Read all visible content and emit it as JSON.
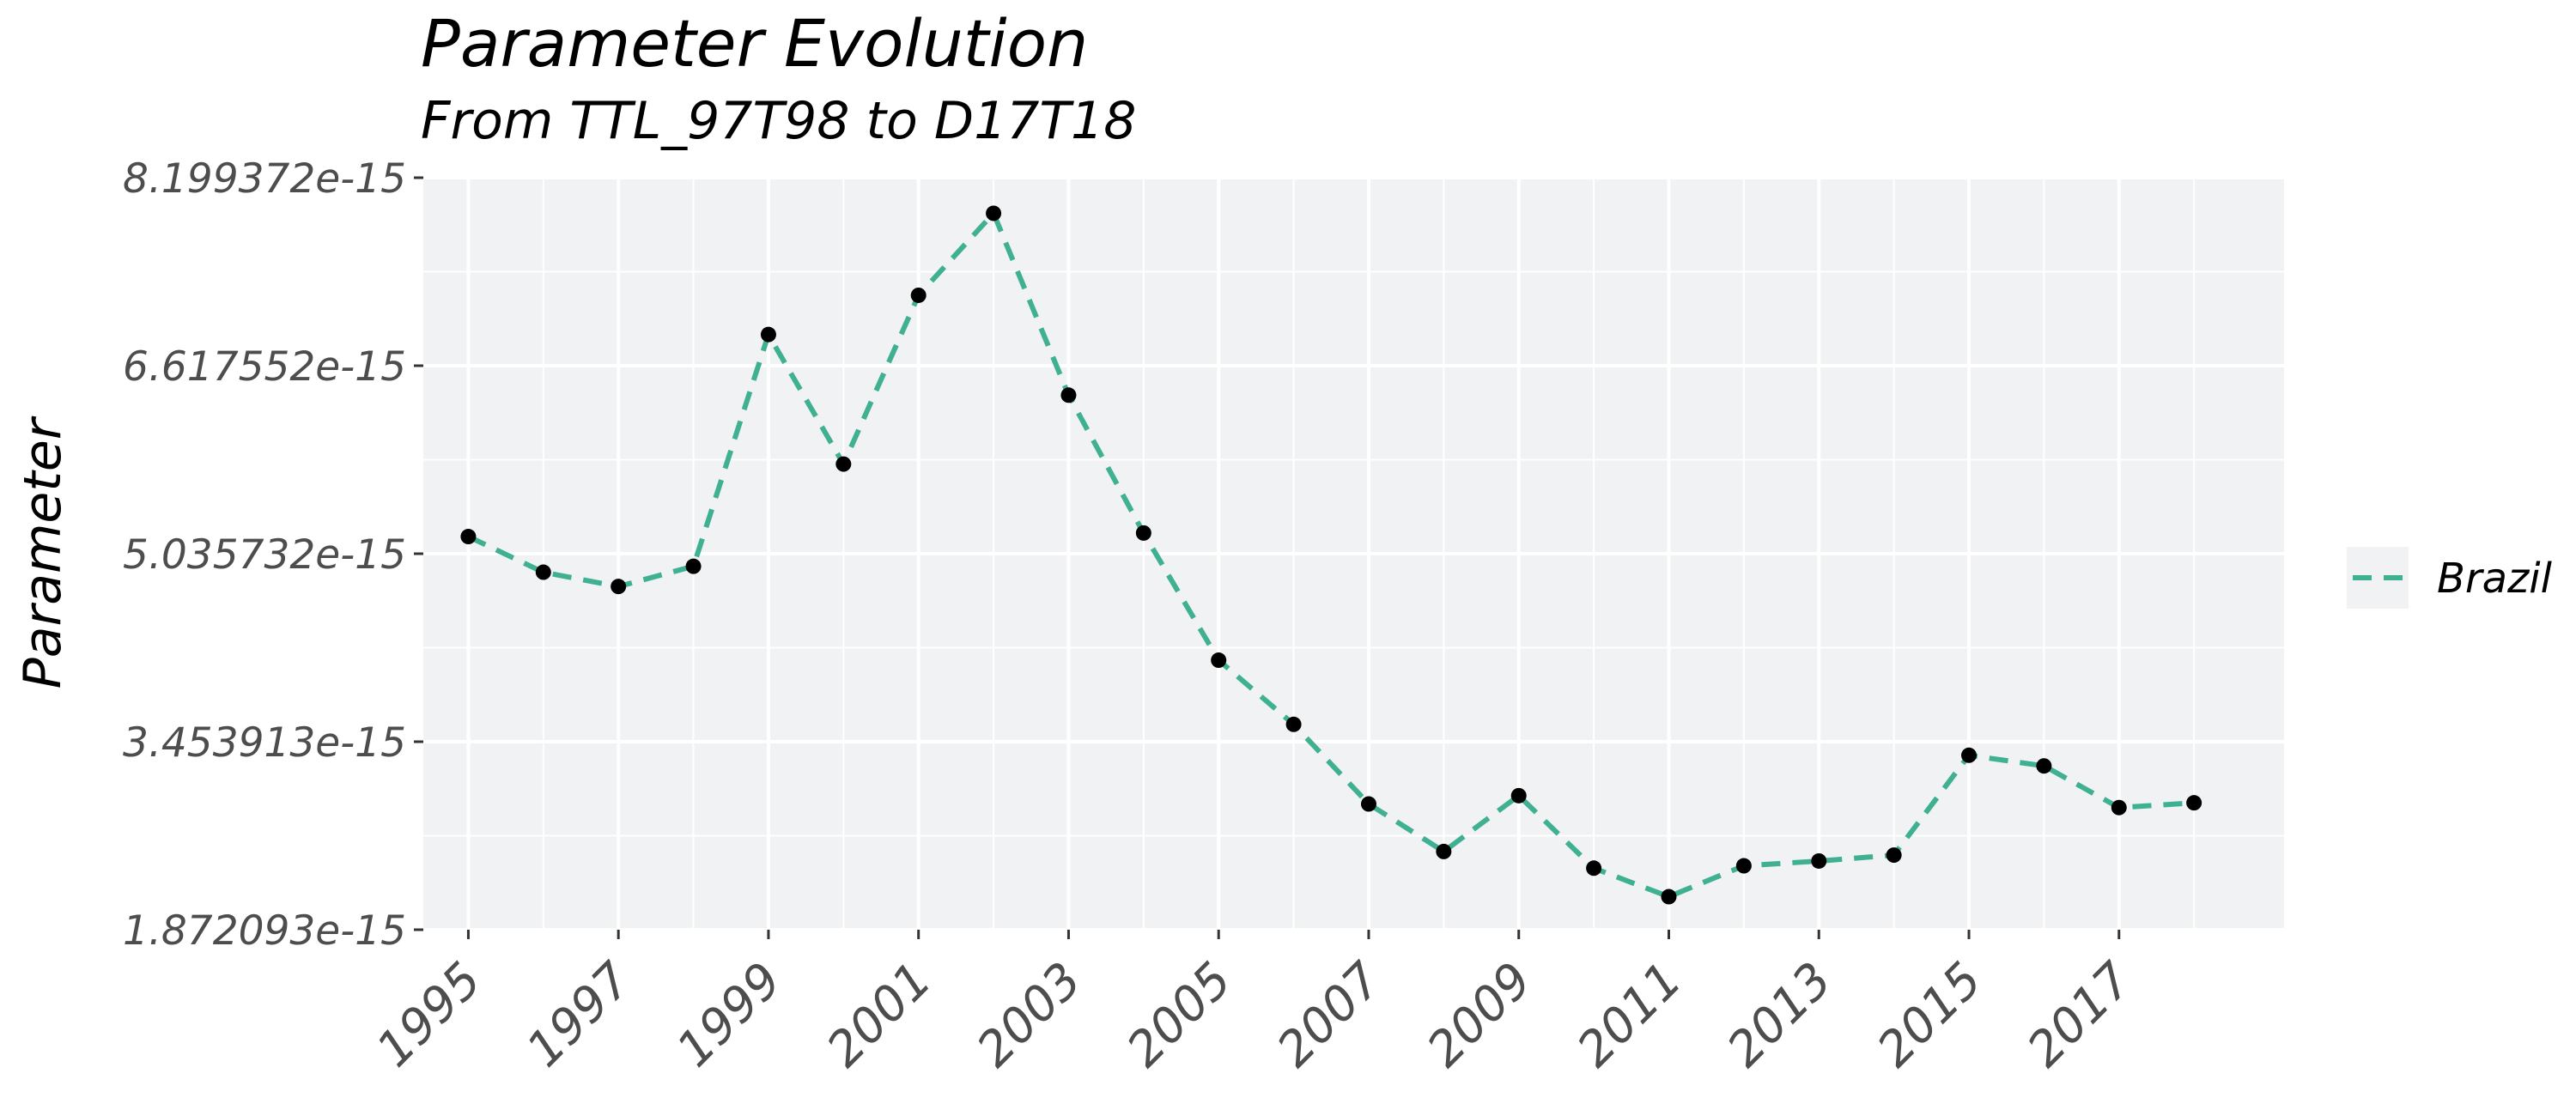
{
  "chart_data": {
    "type": "line",
    "title": "Parameter Evolution",
    "subtitle": "From TTL_97T98 to D17T18",
    "xlabel": "",
    "ylabel": "Parameter",
    "x": [
      1995,
      1996,
      1997,
      1998,
      1999,
      2000,
      2001,
      2002,
      2003,
      2004,
      2005,
      2006,
      2007,
      2008,
      2009,
      2010,
      2011,
      2012,
      2013,
      2014,
      2015,
      2016,
      2017,
      2018
    ],
    "x_ticks": [
      1995,
      1997,
      1999,
      2001,
      2003,
      2005,
      2007,
      2009,
      2011,
      2013,
      2015,
      2017
    ],
    "x_tick_labels": [
      "1995",
      "1997",
      "1999",
      "2001",
      "2003",
      "2005",
      "2007",
      "2009",
      "2011",
      "2013",
      "2015",
      "2017"
    ],
    "xlim": [
      1994.4,
      2019.2
    ],
    "y_ticks": [
      1.872093e-15,
      3.453913e-15,
      5.035732e-15,
      6.617552e-15,
      8.199372e-15
    ],
    "y_tick_labels": [
      "1.872093e-15",
      "3.453913e-15",
      "5.035732e-15",
      "6.617552e-15",
      "8.199372e-15"
    ],
    "ylim": [
      1.872093e-15,
      8.199372e-15
    ],
    "grid": true,
    "legend_position": "right",
    "series": [
      {
        "name": "Brazil",
        "color": "#40b093",
        "line_style": "dashed",
        "point_color": "#000000",
        "values": [
          5.18e-15,
          4.88e-15,
          4.76e-15,
          4.93e-15,
          6.88e-15,
          5.79e-15,
          7.21e-15,
          7.9e-15,
          6.37e-15,
          5.21e-15,
          4.14e-15,
          3.6e-15,
          2.93e-15,
          2.53e-15,
          3e-15,
          2.39e-15,
          2.15e-15,
          2.41e-15,
          2.45e-15,
          2.5e-15,
          3.34e-15,
          3.25e-15,
          2.9e-15,
          2.94e-15
        ]
      }
    ]
  }
}
